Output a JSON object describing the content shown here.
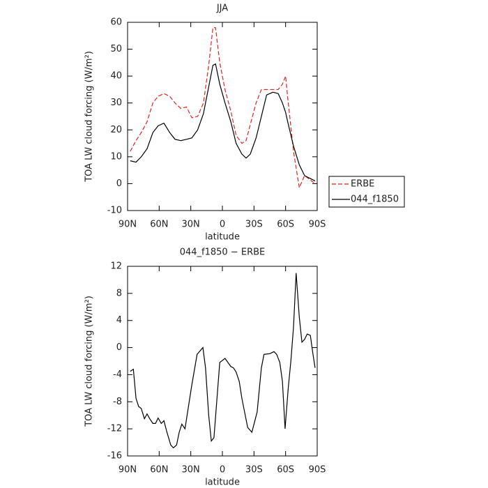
{
  "chart_data": [
    {
      "type": "line",
      "title": "JJA",
      "x_label": "latitude",
      "y_label": "TOA LW cloud forcing (W/m²)",
      "x": [
        87.5,
        82,
        77,
        71.5,
        66,
        61,
        55.5,
        50,
        45,
        39.5,
        34,
        29,
        23.5,
        18,
        13,
        9,
        6.5,
        2.5,
        -2.5,
        -8,
        -13,
        -18.5,
        -22.5,
        -26.5,
        -32,
        -37,
        -42,
        -48,
        -53,
        -57,
        -60,
        -62,
        -67.5,
        -73,
        -78,
        -83,
        -88
      ],
      "series": [
        {
          "name": "ERBE",
          "color": "#e8231f",
          "line_style": "dashed",
          "values": [
            12,
            16,
            19,
            23,
            30,
            32.5,
            33.5,
            32.5,
            30,
            28,
            28.5,
            24.5,
            25,
            30,
            44,
            58,
            58,
            45,
            35,
            27,
            18,
            15,
            16,
            22,
            30,
            35,
            35,
            35,
            35,
            37,
            40,
            32,
            12,
            -1.5,
            3,
            1.5,
            0
          ]
        },
        {
          "name": "044_f1850",
          "color": "#000000",
          "line_style": "solid",
          "values": [
            8.5,
            8,
            10,
            13,
            19,
            21.5,
            22.5,
            19,
            16.5,
            16,
            16.5,
            17,
            20,
            26,
            36,
            44,
            44.5,
            37,
            30,
            23,
            15,
            11,
            9.5,
            11,
            17,
            25,
            33,
            34,
            33.5,
            30,
            26.5,
            23,
            14,
            7,
            3,
            2,
            1
          ]
        }
      ],
      "xlim": [
        90,
        -90
      ],
      "xticks": [
        {
          "value": 90,
          "label": "90N"
        },
        {
          "value": 60,
          "label": "60N"
        },
        {
          "value": 30,
          "label": "30N"
        },
        0,
        {
          "value": -30,
          "label": "30S"
        },
        {
          "value": -60,
          "label": "60S"
        },
        {
          "value": -90,
          "label": "90S"
        }
      ],
      "ylim": [
        -10,
        60
      ],
      "yticks": [
        -10,
        0,
        10,
        20,
        30,
        40,
        50,
        60
      ],
      "legend": "outside-right"
    },
    {
      "type": "line",
      "title": "044_f1850 − ERBE",
      "x_label": "latitude",
      "y_label": "TOA LW cloud forcing (W/m²)",
      "x": [
        87.5,
        84.5,
        82,
        79.5,
        77,
        74,
        71.5,
        69,
        66,
        63.5,
        61,
        58,
        55.5,
        53,
        49,
        46.5,
        43.5,
        41,
        38.5,
        35.5,
        33,
        29,
        24,
        18.5,
        16,
        13,
        10.5,
        8,
        2.5,
        -2.5,
        -8,
        -10.5,
        -13,
        -16,
        -18.5,
        -24,
        -28,
        -33,
        -37,
        -39.5,
        -45,
        -49,
        -51.5,
        -54.5,
        -57,
        -59.5,
        -62.5,
        -65,
        -67.5,
        -70,
        -73,
        -75.5,
        -78,
        -80.5,
        -83.5,
        -86,
        -88
      ],
      "series": [
        {
          "name": "044_f1850 − ERBE",
          "color": "#000000",
          "line_style": "solid",
          "values": [
            -3.5,
            -3.2,
            -7.5,
            -8.7,
            -9,
            -10.5,
            -9.8,
            -10.5,
            -11.2,
            -11.2,
            -10.4,
            -11.2,
            -10.8,
            -12.3,
            -14.4,
            -14.8,
            -14.4,
            -12.5,
            -11.3,
            -12,
            -9.5,
            -5.5,
            -1,
            0,
            -3,
            -10,
            -13.8,
            -13.3,
            -2.2,
            -1.6,
            -2.8,
            -3,
            -3.6,
            -5,
            -7.5,
            -11.8,
            -12.5,
            -9.5,
            -3,
            -1,
            -0.9,
            -0.6,
            -1,
            -2.2,
            -5,
            -12,
            -6,
            -2,
            3,
            11,
            4.5,
            0.8,
            1.2,
            2,
            1.8,
            -1,
            -3
          ]
        }
      ],
      "xlim": [
        90,
        -90
      ],
      "xticks": [
        {
          "value": 90,
          "label": "90N"
        },
        {
          "value": 60,
          "label": "60N"
        },
        {
          "value": 30,
          "label": "30N"
        },
        0,
        {
          "value": -30,
          "label": "30S"
        },
        {
          "value": -60,
          "label": "60S"
        },
        {
          "value": -90,
          "label": "90S"
        }
      ],
      "ylim": [
        -16,
        12
      ],
      "yticks": [
        -16,
        -12,
        -8,
        -4,
        0,
        4,
        8,
        12
      ]
    }
  ]
}
